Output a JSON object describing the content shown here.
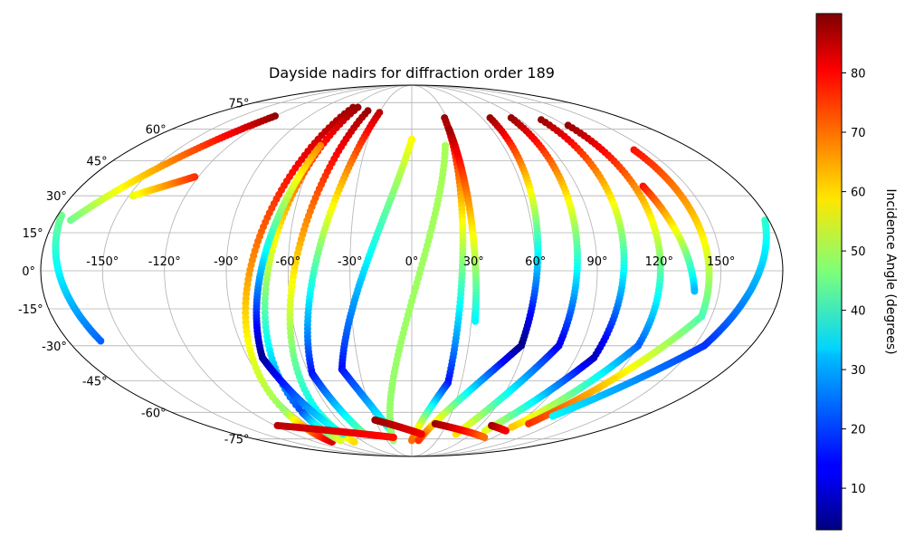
{
  "chart_data": {
    "type": "scatter",
    "title": "Dayside nadirs for diffraction order 189",
    "projection": "mollweide",
    "grid": true,
    "lon_ticks": [
      -150,
      -120,
      -90,
      -60,
      -30,
      0,
      30,
      60,
      90,
      120,
      150
    ],
    "lon_tick_labels": [
      "-150°",
      "-120°",
      "-90°",
      "-60°",
      "-30°",
      "0°",
      "30°",
      "60°",
      "90°",
      "120°",
      "150°"
    ],
    "lat_ticks": [
      75,
      60,
      45,
      30,
      15,
      0,
      -15,
      -30,
      -45,
      -60,
      -75
    ],
    "lat_tick_labels": [
      "75°",
      "60°",
      "45°",
      "30°",
      "15°",
      "0°",
      "-15°",
      "-30°",
      "-45°",
      "-60°",
      "-75°"
    ],
    "colorbar": {
      "label": "Incidence Angle (degrees)",
      "min": 3,
      "max": 90,
      "colormap": "jet",
      "ticks": [
        10,
        20,
        30,
        40,
        50,
        60,
        70,
        80
      ],
      "tick_labels": [
        "10",
        "20",
        "30",
        "40",
        "50",
        "60",
        "70",
        "80"
      ]
    },
    "tracks": [
      {
        "lon_start": -172,
        "lat_start": 20,
        "lon_end": -120,
        "lat_end": 67,
        "inc_start": 45,
        "inc_end": 88
      },
      {
        "lon_start": -163,
        "lat_start": -28,
        "lon_end": -178,
        "lat_end": 22,
        "inc_start": 22,
        "inc_end": 45
      },
      {
        "lon_start": -148,
        "lat_start": 30,
        "lon_end": -122,
        "lat_end": 38,
        "inc_start": 55,
        "inc_end": 75
      },
      {
        "lon_start": -60,
        "lat_start": 72,
        "lon_end": -94,
        "lat_end": -60,
        "inc_start": 88,
        "inc_end": 48
      },
      {
        "lon_start": -94,
        "lat_start": -60,
        "lon_end": -100,
        "lat_end": -77,
        "inc_start": 48,
        "inc_end": 82
      },
      {
        "lon_start": -55,
        "lat_start": 72,
        "lon_end": -82,
        "lat_end": -60,
        "inc_start": 88,
        "inc_end": 20
      },
      {
        "lon_start": -82,
        "lat_start": -60,
        "lon_end": -85,
        "lat_end": -76,
        "inc_start": 20,
        "inc_end": 55
      },
      {
        "lon_start": -42,
        "lat_start": 70,
        "lon_end": -70,
        "lat_end": -60,
        "inc_start": 88,
        "inc_end": 35
      },
      {
        "lon_start": -70,
        "lat_start": -60,
        "lon_end": -72,
        "lat_end": -77,
        "inc_start": 35,
        "inc_end": 60
      },
      {
        "lon_start": -60,
        "lat_start": 52,
        "lon_end": -82,
        "lat_end": -35,
        "inc_start": 68,
        "inc_end": 5
      },
      {
        "lon_start": -82,
        "lat_start": -35,
        "lon_end": -70,
        "lat_end": -72,
        "inc_start": 5,
        "inc_end": 40
      },
      {
        "lon_start": -30,
        "lat_start": 69,
        "lon_end": -58,
        "lat_end": -42,
        "inc_start": 85,
        "inc_end": 15
      },
      {
        "lon_start": -58,
        "lat_start": -42,
        "lon_end": -48,
        "lat_end": -72,
        "inc_start": 15,
        "inc_end": 45
      },
      {
        "lon_start": 0,
        "lat_start": 55,
        "lon_end": -40,
        "lat_end": -40,
        "inc_start": 58,
        "inc_end": 15
      },
      {
        "lon_start": -40,
        "lat_start": -40,
        "lon_end": -20,
        "lat_end": -70,
        "inc_start": 15,
        "inc_end": 40
      },
      {
        "lon_start": 22,
        "lat_start": 52,
        "lon_end": -22,
        "lat_end": -76,
        "inc_start": 50,
        "inc_end": 48
      },
      {
        "lon_start": 28,
        "lat_start": 66,
        "lon_end": 22,
        "lat_end": -46,
        "inc_start": 88,
        "inc_end": 15
      },
      {
        "lon_start": 22,
        "lat_start": -46,
        "lon_end": 0,
        "lat_end": -76,
        "inc_start": 15,
        "inc_end": 70
      },
      {
        "lon_start": 28,
        "lat_start": 60,
        "lon_end": 32,
        "lat_end": -20,
        "inc_start": 88,
        "inc_end": 35
      },
      {
        "lon_start": 67,
        "lat_start": 66,
        "lon_end": 58,
        "lat_end": -30,
        "inc_start": 88,
        "inc_end": 3
      },
      {
        "lon_start": 58,
        "lat_start": -30,
        "lon_end": 8,
        "lat_end": -76,
        "inc_start": 3,
        "inc_end": 75
      },
      {
        "lon_start": 85,
        "lat_start": 66,
        "lon_end": 78,
        "lat_end": -30,
        "inc_start": 88,
        "inc_end": 12
      },
      {
        "lon_start": 78,
        "lat_start": -30,
        "lon_end": 45,
        "lat_end": -72,
        "inc_start": 12,
        "inc_end": 60
      },
      {
        "lon_start": 108,
        "lat_start": 65,
        "lon_end": 100,
        "lat_end": -35,
        "inc_start": 88,
        "inc_end": 8
      },
      {
        "lon_start": 100,
        "lat_start": -35,
        "lon_end": 70,
        "lat_end": -70,
        "inc_start": 8,
        "inc_end": 55
      },
      {
        "lon_start": 122,
        "lat_start": 62,
        "lon_end": 120,
        "lat_end": -30,
        "inc_start": 88,
        "inc_end": 22
      },
      {
        "lon_start": 120,
        "lat_start": -30,
        "lon_end": 90,
        "lat_end": -68,
        "inc_start": 22,
        "inc_end": 62
      },
      {
        "lon_start": 142,
        "lat_start": 50,
        "lon_end": 145,
        "lat_end": -18,
        "inc_start": 78,
        "inc_end": 42
      },
      {
        "lon_start": 145,
        "lat_start": -18,
        "lon_end": 100,
        "lat_end": -66,
        "inc_start": 42,
        "inc_end": 75
      },
      {
        "lon_start": 126,
        "lat_start": 34,
        "lon_end": 138,
        "lat_end": -8,
        "inc_start": 78,
        "inc_end": 30
      },
      {
        "lon_start": 178,
        "lat_start": 20,
        "lon_end": 155,
        "lat_end": -30,
        "inc_start": 40,
        "inc_end": 18
      },
      {
        "lon_start": 155,
        "lat_start": -30,
        "lon_end": 110,
        "lat_end": -62,
        "inc_start": 18,
        "inc_end": 35
      },
      {
        "lon_start": -118,
        "lat_start": -67,
        "lon_end": -20,
        "lat_end": -74,
        "inc_start": 85,
        "inc_end": 78
      },
      {
        "lon_start": -30,
        "lat_start": -64,
        "lon_end": 10,
        "lat_end": -72,
        "inc_start": 88,
        "inc_end": 80
      },
      {
        "lon_start": 20,
        "lat_start": -66,
        "lon_end": 80,
        "lat_end": -74,
        "inc_start": 88,
        "inc_end": 70
      },
      {
        "lon_start": 70,
        "lat_start": -67,
        "lon_end": 90,
        "lat_end": -70,
        "inc_start": 88,
        "inc_end": 80
      }
    ]
  }
}
